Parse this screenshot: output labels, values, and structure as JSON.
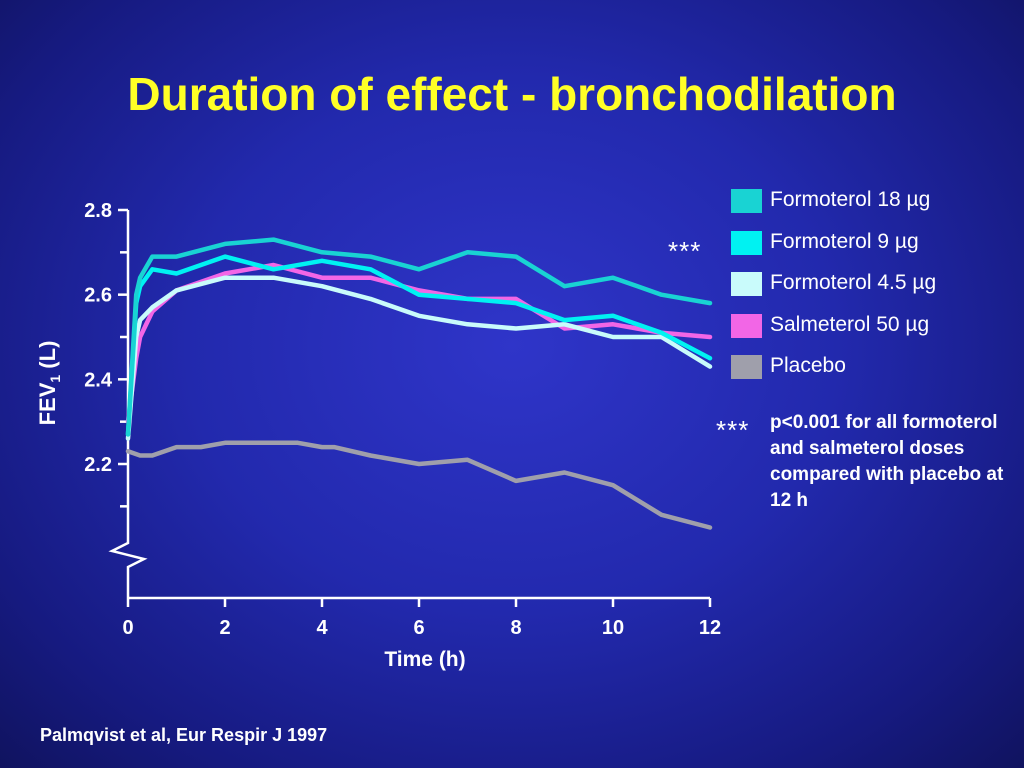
{
  "slide": {
    "title": "Duration of effect - bronchodilation",
    "citation": "Palmqvist et al, Eur Respir J 1997"
  },
  "annotation": {
    "stars": "***",
    "footnote": "p<0.001 for all formoterol and salmeterol doses compared with placebo at 12 h"
  },
  "chart_data": {
    "type": "line",
    "title": "Duration of effect - bronchodilation",
    "xlabel": "Time (h)",
    "ylabel": "FEV1 (L)",
    "ylabel_main": "FEV",
    "ylabel_sub": "1",
    "ylabel_unit": " (L)",
    "xlim": [
      0,
      12
    ],
    "ylim": [
      2.0,
      2.8
    ],
    "axis_break": true,
    "x_ticks": [
      0,
      2,
      4,
      6,
      8,
      10,
      12
    ],
    "x_tick_labels": [
      "0",
      "2",
      "4",
      "6",
      "8",
      "10",
      "12"
    ],
    "y_major_ticks": [
      2.2,
      2.4,
      2.6,
      2.8
    ],
    "y_tick_labels": [
      "2.2",
      "2.4",
      "2.6",
      "2.8"
    ],
    "y_minor_ticks": [
      2.1,
      2.3,
      2.5,
      2.7
    ],
    "grid": false,
    "legend_position": "right",
    "series": [
      {
        "name": "Formoterol 18 µg",
        "color": "#19d3d3",
        "x": [
          0,
          0.17,
          0.25,
          0.5,
          1,
          2,
          3,
          4,
          5,
          6,
          7,
          8,
          9,
          10,
          11,
          12
        ],
        "y": [
          2.27,
          2.6,
          2.64,
          2.69,
          2.69,
          2.72,
          2.73,
          2.7,
          2.69,
          2.66,
          2.7,
          2.69,
          2.62,
          2.64,
          2.6,
          2.58
        ]
      },
      {
        "name": "Formoterol 9 µg",
        "color": "#00f2f2",
        "x": [
          0,
          0.17,
          0.25,
          0.5,
          1,
          2,
          3,
          4,
          5,
          6,
          7,
          8,
          9,
          10,
          11,
          12
        ],
        "y": [
          2.27,
          2.58,
          2.62,
          2.66,
          2.65,
          2.69,
          2.66,
          2.68,
          2.66,
          2.6,
          2.59,
          2.58,
          2.54,
          2.55,
          2.51,
          2.45
        ]
      },
      {
        "name": "Formoterol 4.5 µg",
        "color": "#c9fbfb",
        "x": [
          0,
          0.17,
          0.25,
          0.5,
          1,
          2,
          3,
          4,
          5,
          6,
          7,
          8,
          9,
          10,
          11,
          12
        ],
        "y": [
          2.26,
          2.5,
          2.54,
          2.57,
          2.61,
          2.64,
          2.64,
          2.62,
          2.59,
          2.55,
          2.53,
          2.52,
          2.53,
          2.5,
          2.5,
          2.43
        ]
      },
      {
        "name": "Salmeterol 50 µg",
        "color": "#f266e6",
        "x": [
          0,
          0.17,
          0.25,
          0.5,
          1,
          2,
          3,
          4,
          5,
          6,
          7,
          8,
          9,
          10,
          11,
          12
        ],
        "y": [
          2.3,
          2.45,
          2.5,
          2.56,
          2.61,
          2.65,
          2.67,
          2.64,
          2.64,
          2.61,
          2.59,
          2.59,
          2.52,
          2.53,
          2.51,
          2.5
        ]
      },
      {
        "name": "Placebo",
        "color": "#9f9fab",
        "x": [
          0,
          0.25,
          0.5,
          1,
          1.5,
          2,
          2.5,
          3,
          3.5,
          4,
          4.25,
          5,
          6,
          7,
          8,
          9,
          10,
          11,
          12
        ],
        "y": [
          2.23,
          2.22,
          2.22,
          2.24,
          2.24,
          2.25,
          2.25,
          2.25,
          2.25,
          2.24,
          2.24,
          2.22,
          2.2,
          2.21,
          2.16,
          2.18,
          2.15,
          2.08,
          2.05
        ]
      }
    ]
  }
}
